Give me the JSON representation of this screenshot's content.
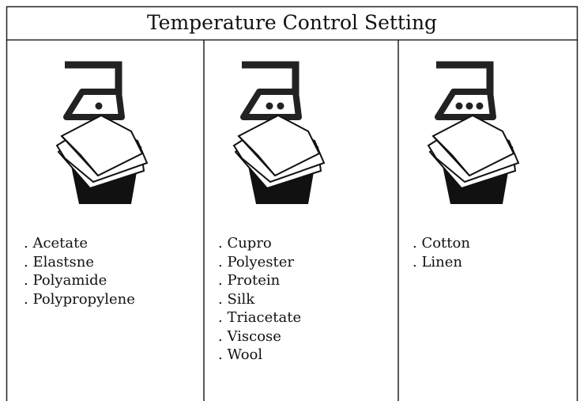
{
  "header": {
    "title": "Temperature Control Setting"
  },
  "columns": [
    {
      "items": [
        ". Acetate",
        ". Elastsne",
        ". Polyamide",
        ". Polypropylene"
      ]
    },
    {
      "items": [
        ". Cupro",
        ". Polyester",
        ". Protein",
        ". Silk",
        ". Triacetate",
        ". Viscose",
        ". Wool"
      ]
    },
    {
      "items": [
        ". Cotton",
        ". Linen"
      ]
    }
  ]
}
